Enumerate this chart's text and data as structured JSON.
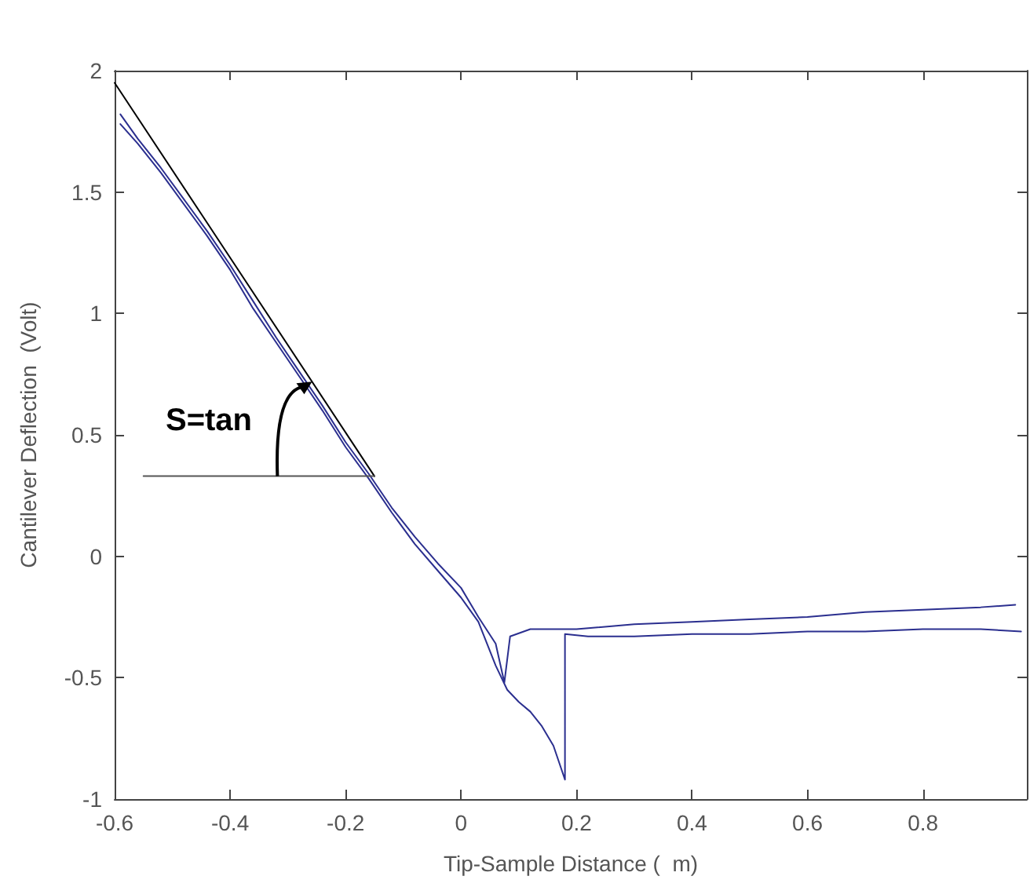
{
  "chart_data": {
    "type": "line",
    "xlabel": "Tip-Sample Distance (  m)",
    "ylabel": "Cantilever Deflection  (Volt)",
    "xlim": [
      -0.6,
      0.98
    ],
    "xticks": [
      -0.6,
      -0.4,
      -0.2,
      0,
      0.2,
      0.4,
      0.6,
      0.8
    ],
    "ylim": [
      -1,
      2
    ],
    "yticks": [
      -1,
      -0.5,
      0,
      0.5,
      1,
      1.5,
      2
    ],
    "grid": false,
    "marker": "none",
    "line_style": "solid",
    "annotations": [
      "S=tan"
    ],
    "series": [
      {
        "color": "#2b2f8f",
        "x": [
          -0.59,
          -0.56,
          -0.52,
          -0.48,
          -0.44,
          -0.4,
          -0.36,
          -0.32,
          -0.28,
          -0.24,
          -0.2,
          -0.16,
          -0.12,
          -0.08,
          -0.04,
          0,
          0.03,
          0.06,
          0.08,
          0.1,
          0.12,
          0.14,
          0.16,
          0.18,
          0.18,
          0.22,
          0.3,
          0.4,
          0.5,
          0.6,
          0.7,
          0.8,
          0.9,
          0.97
        ],
        "values": [
          1.78,
          1.7,
          1.58,
          1.45,
          1.32,
          1.18,
          1.02,
          0.88,
          0.74,
          0.6,
          0.45,
          0.32,
          0.18,
          0.05,
          -0.06,
          -0.17,
          -0.27,
          -0.45,
          -0.55,
          -0.6,
          -0.64,
          -0.7,
          -0.78,
          -0.92,
          -0.32,
          -0.33,
          -0.33,
          -0.32,
          -0.32,
          -0.31,
          -0.31,
          -0.3,
          -0.3,
          -0.31
        ]
      },
      {
        "color": "#2b2f8f",
        "x": [
          -0.59,
          -0.56,
          -0.52,
          -0.48,
          -0.44,
          -0.4,
          -0.36,
          -0.32,
          -0.28,
          -0.24,
          -0.2,
          -0.16,
          -0.12,
          -0.08,
          -0.04,
          0,
          0.03,
          0.06,
          0.075,
          0.085,
          0.12,
          0.2,
          0.3,
          0.4,
          0.5,
          0.6,
          0.7,
          0.8,
          0.9,
          0.96
        ],
        "values": [
          1.82,
          1.72,
          1.6,
          1.47,
          1.34,
          1.2,
          1.05,
          0.9,
          0.76,
          0.62,
          0.47,
          0.34,
          0.2,
          0.08,
          -0.03,
          -0.13,
          -0.25,
          -0.36,
          -0.52,
          -0.33,
          -0.3,
          -0.3,
          -0.28,
          -0.27,
          -0.26,
          -0.25,
          -0.23,
          -0.22,
          -0.21,
          -0.2
        ]
      },
      {
        "color": "#000000",
        "x": [
          -0.6,
          -0.15
        ],
        "values": [
          1.95,
          0.33
        ]
      },
      {
        "color": "#555555",
        "x": [
          -0.55,
          -0.15
        ],
        "values": [
          0.33,
          0.33
        ]
      }
    ]
  }
}
